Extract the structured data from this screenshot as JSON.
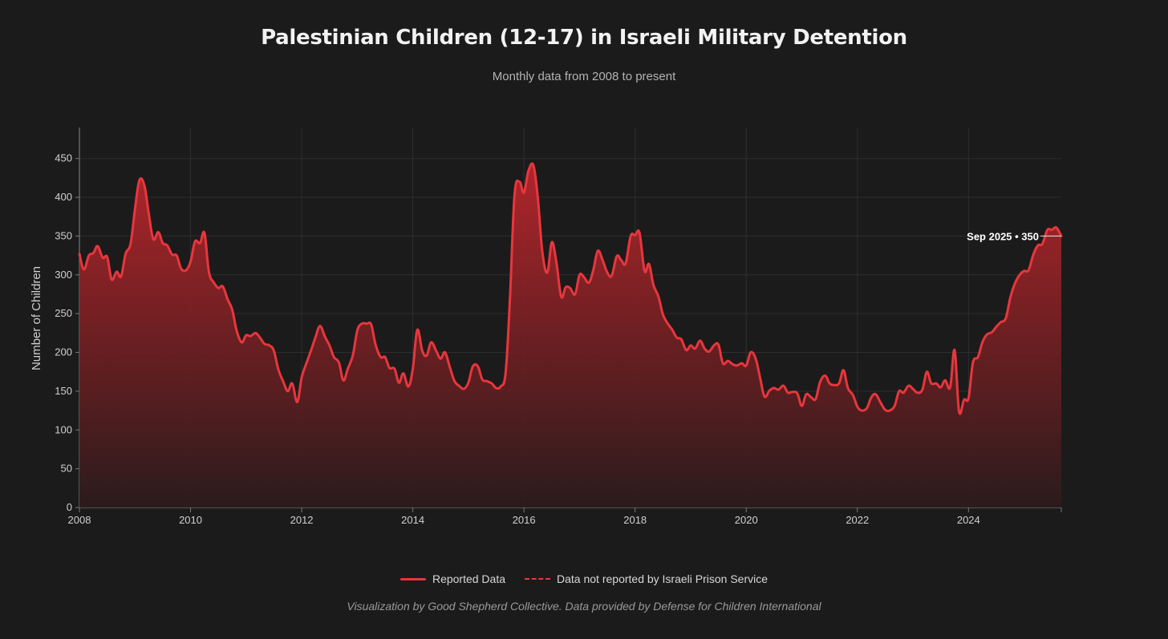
{
  "chart_data": {
    "type": "area",
    "title": "Palestinian Children (12-17) in Israeli Military Detention",
    "subtitle": "Monthly data from 2008 to present",
    "xlabel": "",
    "ylabel": "Number of Children",
    "xlim": [
      2008.0,
      2025.67
    ],
    "ylim": [
      0,
      490
    ],
    "x_ticks": [
      "2008",
      "2010",
      "2012",
      "2014",
      "2016",
      "2018",
      "2020",
      "2022",
      "2024"
    ],
    "y_ticks": [
      "0",
      "50",
      "100",
      "150",
      "200",
      "250",
      "300",
      "350",
      "400",
      "450"
    ],
    "grid": true,
    "series": [
      {
        "name": "Reported Data",
        "color": "#e8363d",
        "points": [
          [
            2008.0,
            327
          ],
          [
            2008.08,
            307
          ],
          [
            2008.17,
            325
          ],
          [
            2008.25,
            328
          ],
          [
            2008.33,
            337
          ],
          [
            2008.42,
            322
          ],
          [
            2008.5,
            323
          ],
          [
            2008.58,
            294
          ],
          [
            2008.67,
            304
          ],
          [
            2008.75,
            298
          ],
          [
            2008.83,
            327
          ],
          [
            2008.92,
            340
          ],
          [
            2009.0,
            385
          ],
          [
            2009.08,
            422
          ],
          [
            2009.17,
            415
          ],
          [
            2009.25,
            378
          ],
          [
            2009.33,
            346
          ],
          [
            2009.42,
            355
          ],
          [
            2009.5,
            341
          ],
          [
            2009.58,
            338
          ],
          [
            2009.67,
            326
          ],
          [
            2009.75,
            325
          ],
          [
            2009.83,
            308
          ],
          [
            2009.92,
            306
          ],
          [
            2010.0,
            317
          ],
          [
            2010.08,
            343
          ],
          [
            2010.17,
            341
          ],
          [
            2010.25,
            354
          ],
          [
            2010.33,
            304
          ],
          [
            2010.42,
            290
          ],
          [
            2010.5,
            283
          ],
          [
            2010.58,
            285
          ],
          [
            2010.67,
            268
          ],
          [
            2010.75,
            255
          ],
          [
            2010.83,
            228
          ],
          [
            2010.92,
            213
          ],
          [
            2011.0,
            222
          ],
          [
            2011.08,
            221
          ],
          [
            2011.17,
            225
          ],
          [
            2011.25,
            219
          ],
          [
            2011.33,
            211
          ],
          [
            2011.42,
            209
          ],
          [
            2011.5,
            202
          ],
          [
            2011.58,
            178
          ],
          [
            2011.67,
            162
          ],
          [
            2011.75,
            150
          ],
          [
            2011.83,
            160
          ],
          [
            2011.92,
            136
          ],
          [
            2012.0,
            168
          ],
          [
            2012.08,
            185
          ],
          [
            2012.17,
            203
          ],
          [
            2012.25,
            220
          ],
          [
            2012.33,
            234
          ],
          [
            2012.42,
            220
          ],
          [
            2012.5,
            209
          ],
          [
            2012.58,
            194
          ],
          [
            2012.67,
            187
          ],
          [
            2012.75,
            164
          ],
          [
            2012.83,
            179
          ],
          [
            2012.92,
            196
          ],
          [
            2013.0,
            228
          ],
          [
            2013.08,
            237
          ],
          [
            2013.17,
            237
          ],
          [
            2013.25,
            236
          ],
          [
            2013.33,
            210
          ],
          [
            2013.42,
            194
          ],
          [
            2013.5,
            194
          ],
          [
            2013.58,
            180
          ],
          [
            2013.67,
            179
          ],
          [
            2013.75,
            161
          ],
          [
            2013.83,
            173
          ],
          [
            2013.92,
            156
          ],
          [
            2014.0,
            179
          ],
          [
            2014.08,
            229
          ],
          [
            2014.17,
            202
          ],
          [
            2014.25,
            196
          ],
          [
            2014.33,
            213
          ],
          [
            2014.42,
            202
          ],
          [
            2014.5,
            192
          ],
          [
            2014.58,
            200
          ],
          [
            2014.67,
            180
          ],
          [
            2014.75,
            163
          ],
          [
            2014.83,
            157
          ],
          [
            2014.92,
            153
          ],
          [
            2015.0,
            161
          ],
          [
            2015.08,
            182
          ],
          [
            2015.17,
            182
          ],
          [
            2015.25,
            165
          ],
          [
            2015.33,
            163
          ],
          [
            2015.42,
            160
          ],
          [
            2015.5,
            154
          ],
          [
            2015.58,
            156
          ],
          [
            2015.67,
            174
          ],
          [
            2015.75,
            273
          ],
          [
            2015.83,
            403
          ],
          [
            2015.92,
            420
          ],
          [
            2016.0,
            406
          ],
          [
            2016.08,
            434
          ],
          [
            2016.17,
            441
          ],
          [
            2016.25,
            399
          ],
          [
            2016.33,
            330
          ],
          [
            2016.42,
            303
          ],
          [
            2016.5,
            342
          ],
          [
            2016.58,
            318
          ],
          [
            2016.67,
            272
          ],
          [
            2016.75,
            284
          ],
          [
            2016.83,
            283
          ],
          [
            2016.92,
            275
          ],
          [
            2017.0,
            300
          ],
          [
            2017.08,
            297
          ],
          [
            2017.17,
            290
          ],
          [
            2017.25,
            307
          ],
          [
            2017.33,
            331
          ],
          [
            2017.42,
            318
          ],
          [
            2017.5,
            303
          ],
          [
            2017.58,
            299
          ],
          [
            2017.67,
            324
          ],
          [
            2017.75,
            319
          ],
          [
            2017.83,
            315
          ],
          [
            2017.92,
            350
          ],
          [
            2018.0,
            351
          ],
          [
            2018.08,
            354
          ],
          [
            2018.17,
            305
          ],
          [
            2018.25,
            314
          ],
          [
            2018.33,
            287
          ],
          [
            2018.42,
            272
          ],
          [
            2018.5,
            249
          ],
          [
            2018.58,
            238
          ],
          [
            2018.67,
            229
          ],
          [
            2018.75,
            219
          ],
          [
            2018.83,
            217
          ],
          [
            2018.92,
            203
          ],
          [
            2019.0,
            209
          ],
          [
            2019.08,
            205
          ],
          [
            2019.17,
            215
          ],
          [
            2019.25,
            205
          ],
          [
            2019.33,
            201
          ],
          [
            2019.42,
            209
          ],
          [
            2019.5,
            210
          ],
          [
            2019.58,
            186
          ],
          [
            2019.67,
            189
          ],
          [
            2019.75,
            185
          ],
          [
            2019.83,
            183
          ],
          [
            2019.92,
            186
          ],
          [
            2020.0,
            183
          ],
          [
            2020.08,
            200
          ],
          [
            2020.17,
            192
          ],
          [
            2020.25,
            167
          ],
          [
            2020.33,
            143
          ],
          [
            2020.42,
            151
          ],
          [
            2020.5,
            154
          ],
          [
            2020.58,
            152
          ],
          [
            2020.67,
            157
          ],
          [
            2020.75,
            148
          ],
          [
            2020.83,
            149
          ],
          [
            2020.92,
            147
          ],
          [
            2021.0,
            131
          ],
          [
            2021.08,
            146
          ],
          [
            2021.17,
            142
          ],
          [
            2021.25,
            140
          ],
          [
            2021.33,
            162
          ],
          [
            2021.42,
            170
          ],
          [
            2021.5,
            160
          ],
          [
            2021.58,
            158
          ],
          [
            2021.67,
            160
          ],
          [
            2021.75,
            177
          ],
          [
            2021.83,
            154
          ],
          [
            2021.92,
            145
          ],
          [
            2022.0,
            130
          ],
          [
            2022.08,
            125
          ],
          [
            2022.17,
            128
          ],
          [
            2022.25,
            142
          ],
          [
            2022.33,
            146
          ],
          [
            2022.42,
            135
          ],
          [
            2022.5,
            126
          ],
          [
            2022.58,
            125
          ],
          [
            2022.67,
            131
          ],
          [
            2022.75,
            150
          ],
          [
            2022.83,
            148
          ],
          [
            2022.92,
            157
          ],
          [
            2023.0,
            153
          ],
          [
            2023.08,
            148
          ],
          [
            2023.17,
            152
          ],
          [
            2023.25,
            175
          ],
          [
            2023.33,
            160
          ],
          [
            2023.42,
            160
          ],
          [
            2023.5,
            155
          ],
          [
            2023.58,
            164
          ],
          [
            2023.67,
            155
          ],
          [
            2023.75,
            203
          ],
          [
            2023.83,
            124
          ],
          [
            2023.92,
            139
          ],
          [
            2024.0,
            141
          ],
          [
            2024.08,
            187
          ],
          [
            2024.17,
            194
          ],
          [
            2024.25,
            213
          ],
          [
            2024.33,
            223
          ],
          [
            2024.42,
            226
          ],
          [
            2024.5,
            233
          ],
          [
            2024.58,
            239
          ],
          [
            2024.67,
            244
          ],
          [
            2024.75,
            270
          ],
          [
            2024.83,
            288
          ],
          [
            2024.92,
            300
          ],
          [
            2025.0,
            305
          ],
          [
            2025.08,
            306
          ],
          [
            2025.17,
            327
          ],
          [
            2025.25,
            338
          ],
          [
            2025.33,
            340
          ],
          [
            2025.42,
            358
          ],
          [
            2025.5,
            358
          ],
          [
            2025.58,
            361
          ],
          [
            2025.67,
            350
          ]
        ]
      },
      {
        "name": "Data not reported by Israeli Prison Service",
        "color": "#e8363d",
        "style": "dashed",
        "points": []
      }
    ],
    "annotation": {
      "label": "Sep 2025 • 350",
      "x": 2025.67,
      "y": 350
    },
    "legend": [
      "Reported Data",
      "Data not reported by Israeli Prison Service"
    ],
    "legend_position": "bottom-center"
  },
  "footer": {
    "credit": "Visualization by Good Shepherd Collective. Data provided by Defense for Children International"
  }
}
